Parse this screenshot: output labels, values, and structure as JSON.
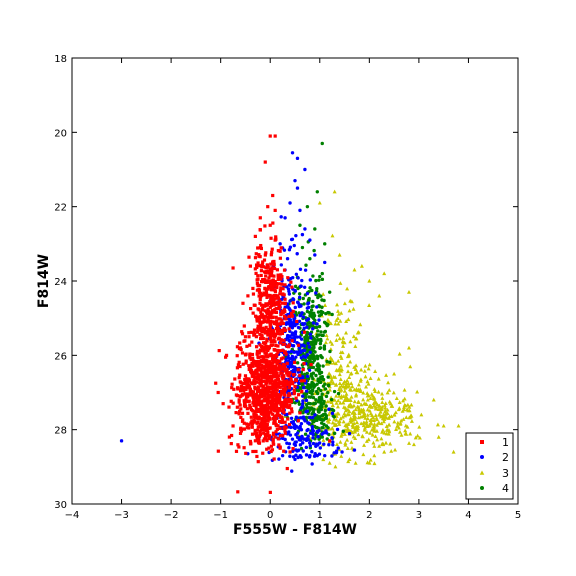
{
  "chart_data": {
    "type": "scatter",
    "title": "",
    "xlabel": "F555W - F814W",
    "ylabel": "F814W",
    "xlim": [
      -4,
      5
    ],
    "ylim": [
      30,
      18
    ],
    "y_inverted": true,
    "grid": false,
    "legend_position": "lower-right",
    "x_ticks": [
      "−4",
      "−3",
      "−2",
      "−1",
      "0",
      "1",
      "2",
      "3",
      "4",
      "5"
    ],
    "y_ticks": [
      "18",
      "20",
      "22",
      "24",
      "26",
      "28",
      "30"
    ],
    "series": [
      {
        "name": "1",
        "marker": "square",
        "color": "#ff0000",
        "points": [
          [
            0.0,
            20.1
          ],
          [
            0.1,
            20.1
          ],
          [
            -0.1,
            20.8
          ],
          [
            0.05,
            21.7
          ],
          [
            -0.05,
            22.0
          ],
          [
            0.1,
            22.1
          ],
          [
            -0.2,
            22.3
          ],
          [
            0.0,
            22.5
          ],
          [
            -0.3,
            22.8
          ],
          [
            0.1,
            22.9
          ],
          [
            -0.2,
            23.1
          ],
          [
            0.2,
            23.2
          ],
          [
            -0.4,
            23.6
          ],
          [
            -0.75,
            23.65
          ],
          [
            -0.35,
            24.2
          ],
          [
            -0.45,
            24.4
          ],
          [
            -0.55,
            24.6
          ],
          [
            -0.5,
            25.5
          ],
          [
            -0.6,
            25.8
          ],
          [
            -0.9,
            26.05
          ],
          [
            -1.1,
            26.75
          ],
          [
            -1.05,
            27.0
          ],
          [
            -0.95,
            27.3
          ],
          [
            -0.75,
            27.9
          ],
          [
            -0.6,
            28.1
          ],
          [
            -0.3,
            28.3
          ],
          [
            0.2,
            28.5
          ],
          [
            0.4,
            28.6
          ],
          [
            0.1,
            28.2
          ],
          [
            -0.05,
            27.5
          ],
          [
            0.3,
            27.8
          ],
          [
            1.2,
            28.3
          ]
        ],
        "clusters": [
          {
            "x_center": -0.1,
            "y_center": 27.0,
            "x_sd": 0.28,
            "y_sd": 0.75,
            "count": 900
          },
          {
            "x_center": 0.0,
            "y_center": 25.0,
            "x_sd": 0.18,
            "y_sd": 0.7,
            "count": 300
          },
          {
            "x_center": 0.0,
            "y_center": 23.8,
            "x_sd": 0.15,
            "y_sd": 0.5,
            "count": 90
          }
        ]
      },
      {
        "name": "2",
        "marker": "circle",
        "color": "#0000ff",
        "points": [
          [
            -3.0,
            28.3
          ],
          [
            0.45,
            20.55
          ],
          [
            0.55,
            20.7
          ],
          [
            0.7,
            21.0
          ],
          [
            0.5,
            21.3
          ],
          [
            0.55,
            21.5
          ],
          [
            0.4,
            21.9
          ],
          [
            0.6,
            22.1
          ],
          [
            0.3,
            22.3
          ],
          [
            0.7,
            22.6
          ],
          [
            0.8,
            22.9
          ],
          [
            0.9,
            23.3
          ],
          [
            1.1,
            23.5
          ],
          [
            0.2,
            23.0
          ],
          [
            0.35,
            23.4
          ],
          [
            0.25,
            28.7
          ],
          [
            0.5,
            28.8
          ],
          [
            0.8,
            28.7
          ],
          [
            1.1,
            28.7
          ],
          [
            1.45,
            28.6
          ],
          [
            1.7,
            28.55
          ],
          [
            0.95,
            28.7
          ]
        ],
        "clusters": [
          {
            "x_center": 0.45,
            "y_center": 25.5,
            "x_sd": 0.18,
            "y_sd": 1.1,
            "count": 320
          },
          {
            "x_center": 0.6,
            "y_center": 28.2,
            "x_sd": 0.35,
            "y_sd": 0.35,
            "count": 140
          }
        ]
      },
      {
        "name": "3",
        "marker": "triangle",
        "color": "#c8c800",
        "points": [
          [
            1.3,
            21.6
          ],
          [
            1.0,
            21.9
          ],
          [
            1.4,
            23.3
          ],
          [
            1.7,
            23.7
          ],
          [
            1.85,
            23.6
          ],
          [
            2.3,
            23.8
          ],
          [
            2.0,
            24.0
          ],
          [
            2.2,
            24.4
          ],
          [
            2.8,
            24.3
          ],
          [
            1.6,
            24.8
          ],
          [
            2.8,
            25.8
          ],
          [
            2.5,
            26.5
          ],
          [
            3.3,
            27.2
          ],
          [
            3.5,
            27.9
          ],
          [
            3.8,
            27.9
          ],
          [
            3.4,
            28.2
          ],
          [
            2.9,
            28.4
          ],
          [
            2.3,
            28.6
          ],
          [
            2.1,
            28.7
          ],
          [
            1.6,
            28.8
          ],
          [
            1.2,
            28.9
          ],
          [
            3.7,
            28.6
          ],
          [
            3.05,
            27.6
          ],
          [
            2.7,
            27.4
          ]
        ],
        "clusters": [
          {
            "x_center": 1.6,
            "y_center": 27.5,
            "x_sd": 0.45,
            "y_sd": 0.6,
            "count": 320
          },
          {
            "x_center": 2.3,
            "y_center": 27.6,
            "x_sd": 0.45,
            "y_sd": 0.4,
            "count": 150
          },
          {
            "x_center": 1.4,
            "y_center": 26.0,
            "x_sd": 0.25,
            "y_sd": 0.8,
            "count": 110
          }
        ]
      },
      {
        "name": "4",
        "marker": "circle",
        "color": "#008000",
        "points": [
          [
            1.05,
            20.3
          ],
          [
            0.95,
            21.6
          ],
          [
            0.75,
            22.0
          ],
          [
            0.6,
            22.5
          ],
          [
            0.9,
            22.6
          ],
          [
            1.1,
            23.0
          ],
          [
            0.65,
            23.1
          ],
          [
            0.8,
            23.4
          ],
          [
            1.05,
            23.8
          ],
          [
            0.55,
            23.9
          ],
          [
            1.2,
            24.3
          ],
          [
            1.15,
            25.2
          ],
          [
            1.25,
            24.9
          ],
          [
            1.05,
            28.2
          ],
          [
            1.3,
            28.1
          ]
        ],
        "clusters": [
          {
            "x_center": 0.8,
            "y_center": 25.8,
            "x_sd": 0.17,
            "y_sd": 1.0,
            "count": 350
          },
          {
            "x_center": 0.95,
            "y_center": 27.5,
            "x_sd": 0.2,
            "y_sd": 0.45,
            "count": 130
          }
        ]
      }
    ]
  }
}
